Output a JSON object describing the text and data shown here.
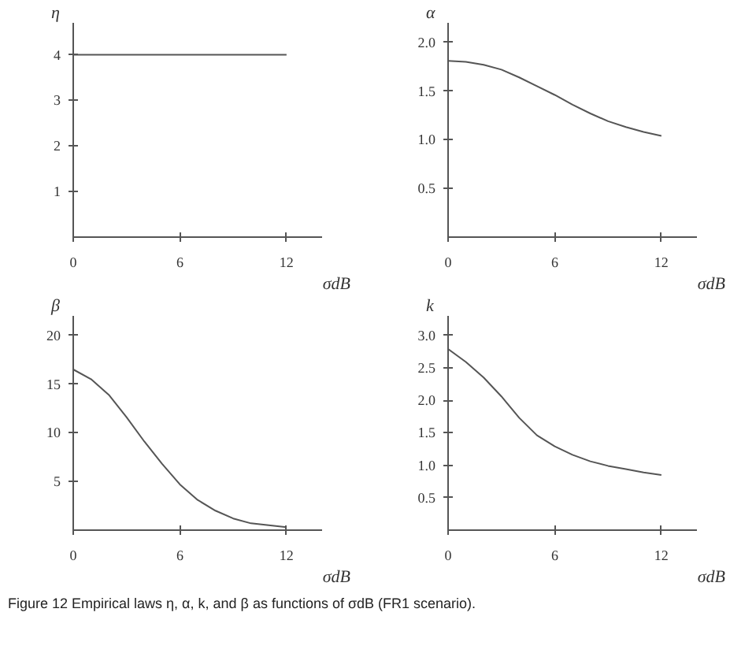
{
  "chart_data": [
    {
      "type": "line",
      "ylabel": "η",
      "xlabel": "σdB",
      "x": [
        0,
        12
      ],
      "values": [
        4,
        4
      ],
      "color": "#555555",
      "xlim": [
        0,
        14
      ],
      "xticks": [
        0,
        6,
        12
      ],
      "ylim": [
        0,
        4.7
      ],
      "yticks": [
        1,
        2,
        3,
        4
      ],
      "grid": false
    },
    {
      "type": "line",
      "ylabel": "α",
      "xlabel": "σdB",
      "x": [
        0,
        1,
        2,
        3,
        4,
        5,
        6,
        7,
        8,
        9,
        10,
        11,
        12
      ],
      "values": [
        1.81,
        1.8,
        1.77,
        1.72,
        1.64,
        1.55,
        1.46,
        1.36,
        1.27,
        1.19,
        1.13,
        1.08,
        1.04
      ],
      "color": "#555555",
      "xlim": [
        0,
        14
      ],
      "xticks": [
        0,
        6,
        12
      ],
      "ylim": [
        0,
        2.2
      ],
      "yticks": [
        {
          "value": 0.5,
          "label": "0.5"
        },
        {
          "value": 1,
          "label": "1.0"
        },
        {
          "value": 1.5,
          "label": "1.5"
        },
        {
          "value": 2,
          "label": "2.0"
        }
      ],
      "grid": false
    },
    {
      "type": "line",
      "ylabel": "β",
      "xlabel": "σdB",
      "x": [
        0,
        1,
        2,
        3,
        4,
        5,
        6,
        7,
        8,
        9,
        10,
        11,
        12
      ],
      "values": [
        16.5,
        15.5,
        13.9,
        11.6,
        9.1,
        6.8,
        4.7,
        3.1,
        2.0,
        1.2,
        0.7,
        0.5,
        0.3
      ],
      "color": "#555555",
      "xlim": [
        0,
        14
      ],
      "xticks": [
        0,
        6,
        12
      ],
      "ylim": [
        0,
        22
      ],
      "yticks": [
        5,
        10,
        15,
        20
      ],
      "grid": false
    },
    {
      "type": "line",
      "ylabel": "k",
      "xlabel": "σdB",
      "x": [
        0,
        1,
        2,
        3,
        4,
        5,
        6,
        7,
        8,
        9,
        10,
        11,
        12
      ],
      "values": [
        2.79,
        2.59,
        2.35,
        2.06,
        1.73,
        1.46,
        1.29,
        1.16,
        1.06,
        0.99,
        0.94,
        0.89,
        0.85
      ],
      "color": "#555555",
      "xlim": [
        0,
        14
      ],
      "xticks": [
        0,
        6,
        12
      ],
      "ylim": [
        0,
        3.3
      ],
      "yticks": [
        {
          "value": 0.5,
          "label": "0.5"
        },
        {
          "value": 1,
          "label": "1.0"
        },
        {
          "value": 1.5,
          "label": "1.5"
        },
        {
          "value": 2,
          "label": "2.0"
        },
        {
          "value": 2.5,
          "label": "2.5"
        },
        {
          "value": 3,
          "label": "3.0"
        }
      ],
      "grid": false,
      "annotations": [
        "Figure 12 Empirical laws η, α, k, and β as functions of σdB (FR1 scenario)."
      ]
    }
  ]
}
